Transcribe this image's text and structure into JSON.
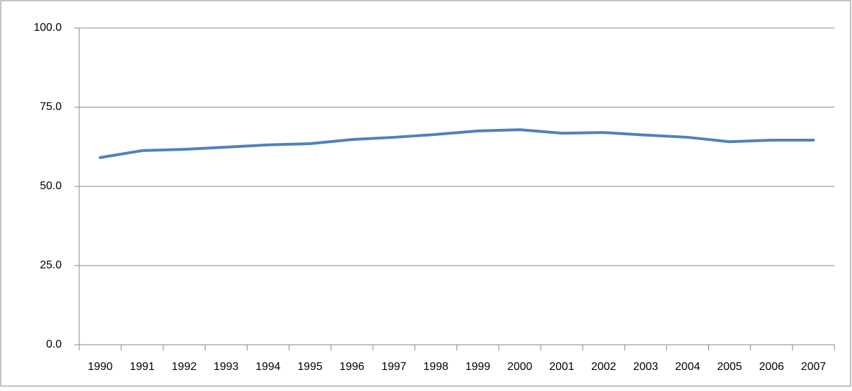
{
  "chart_data": {
    "type": "line",
    "categories": [
      "1990",
      "1991",
      "1992",
      "1993",
      "1994",
      "1995",
      "1996",
      "1997",
      "1998",
      "1999",
      "2000",
      "2001",
      "2002",
      "2003",
      "2004",
      "2005",
      "2006",
      "2007"
    ],
    "series": [
      {
        "color": "#4f81bd",
        "values": [
          59.1,
          61.3,
          61.7,
          62.4,
          63.1,
          63.5,
          64.8,
          65.5,
          66.4,
          67.5,
          67.9,
          66.8,
          67.0,
          66.2,
          65.5,
          64.1,
          64.6,
          64.6
        ]
      }
    ],
    "ylim": [
      0,
      100
    ],
    "yticks": [
      {
        "value": 0,
        "label": "0.0"
      },
      {
        "value": 25,
        "label": "25.0"
      },
      {
        "value": 50,
        "label": "50.0"
      },
      {
        "value": 75,
        "label": "75.0"
      },
      {
        "value": 100,
        "label": "100.0"
      }
    ],
    "grid": true
  }
}
